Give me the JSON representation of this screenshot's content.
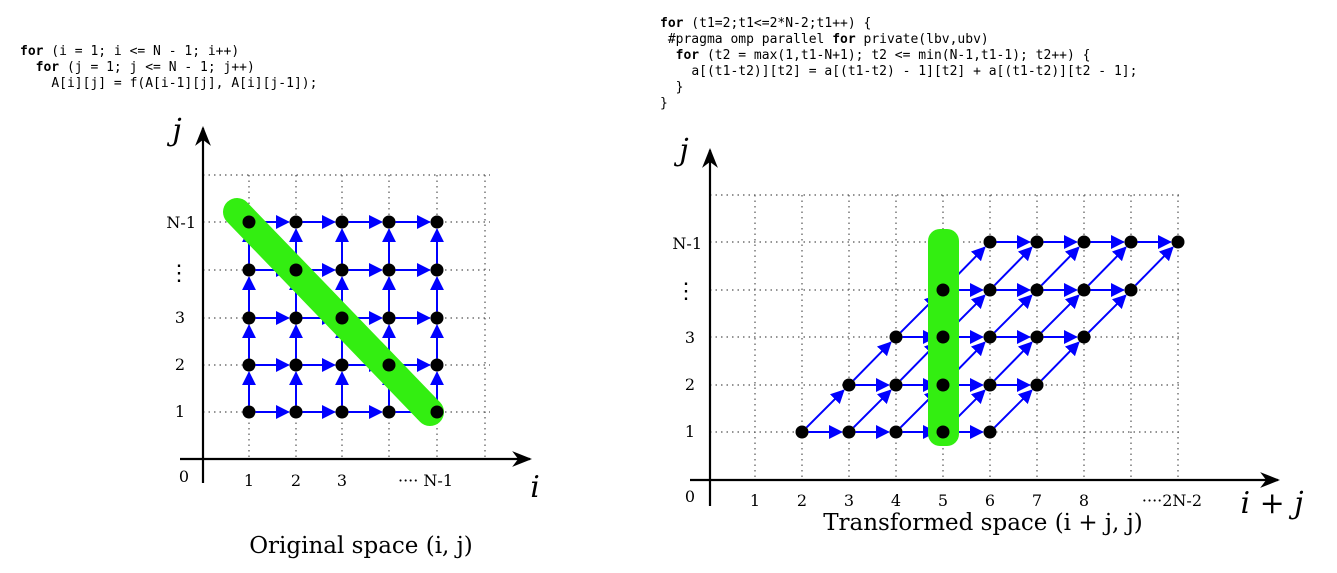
{
  "left": {
    "code": [
      {
        "indent": "",
        "kw": "for",
        "rest": " (i = 1; i <= N - 1; i++)"
      },
      {
        "indent": "  ",
        "kw": "for",
        "rest": " (j = 1; j <= N - 1; j++)"
      },
      {
        "indent": "    ",
        "kw": "",
        "rest": "A[i][j] = f(A[i-1][j], A[i][j-1]);"
      }
    ],
    "y_axis_label": "j",
    "x_axis_label": "i",
    "origin_label": "0",
    "x_ticks": [
      "1",
      "2",
      "3",
      "···· N-1"
    ],
    "y_ticks": [
      "1",
      "2",
      "3",
      "N-1"
    ],
    "vdots": "⋮",
    "caption": "Original space (i, j)"
  },
  "right": {
    "code": [
      {
        "indent": "",
        "kw": "for",
        "rest": " (t1=2;t1<=2*N-2;t1++) {"
      },
      {
        "indent": " ",
        "kw": "",
        "rest": "#pragma omp parallel ",
        "kw2": "for",
        "rest2": " private(lbv,ubv)"
      },
      {
        "indent": "  ",
        "kw": "for",
        "rest": " (t2 = max(1,t1-N+1); t2 <= min(N-1,t1-1); t2++) {"
      },
      {
        "indent": "    ",
        "kw": "",
        "rest": "a[(t1-t2)][t2] = a[(t1-t2) - 1][t2] + a[(t1-t2)][t2 - 1];"
      },
      {
        "indent": "  ",
        "kw": "",
        "rest": "}"
      },
      {
        "indent": "",
        "kw": "",
        "rest": "}"
      }
    ],
    "y_axis_label": "j",
    "x_axis_label": "i + j",
    "origin_label": "0",
    "x_ticks": [
      "1",
      "2",
      "3",
      "4",
      "5",
      "6",
      "7",
      "8",
      "····2N-2"
    ],
    "y_ticks": [
      "1",
      "2",
      "3",
      "N-1"
    ],
    "vdots": "⋮",
    "caption": "Transformed space (i + j, j)"
  },
  "colors": {
    "node": "#000000",
    "arrow": "#0000ff",
    "highlight": "#33ee11",
    "grid": "#555555"
  }
}
